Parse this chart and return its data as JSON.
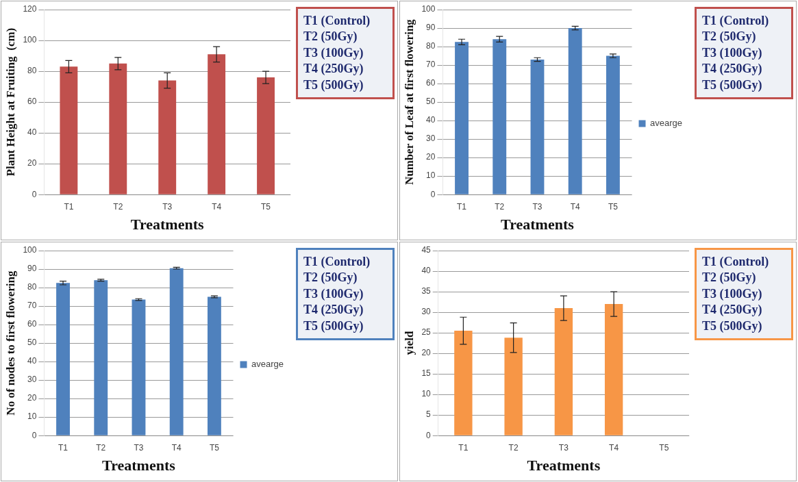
{
  "chart_data": [
    {
      "type": "bar",
      "categories": [
        "T1",
        "T2",
        "T3",
        "T4",
        "T5"
      ],
      "series": [
        {
          "color": "#c0504d",
          "values": [
            83,
            85,
            74,
            91,
            76
          ],
          "errors": [
            4,
            4,
            5,
            5,
            4
          ]
        }
      ],
      "xlabel": "Treatments",
      "ylabel": "Plant Height at Fruiting  (cm)",
      "ylim": [
        0,
        120
      ],
      "yticks": [
        0,
        20,
        40,
        60,
        80,
        100,
        120
      ],
      "grid": "y",
      "legend": false,
      "annotations": [
        "T1 (Control)",
        "T2 (50Gy)",
        "T3 (100Gy)",
        "T4 (250Gy)",
        "T5 (500Gy)"
      ]
    },
    {
      "type": "bar",
      "categories": [
        "T1",
        "T2",
        "T3",
        "T4",
        "T5"
      ],
      "series": [
        {
          "name": "avearge",
          "color": "#4f81bd",
          "values": [
            82.5,
            84,
            73,
            90,
            75
          ],
          "errors": [
            1.5,
            1.5,
            1,
            1,
            1
          ]
        }
      ],
      "xlabel": "Treatments",
      "ylabel": "Number of Leaf at first flowering",
      "ylim": [
        0,
        100
      ],
      "yticks": [
        0,
        10,
        20,
        30,
        40,
        50,
        60,
        70,
        80,
        90,
        100
      ],
      "grid": "y",
      "legend": "right",
      "annotations": [
        "T1 (Control)",
        "T2 (50Gy)",
        "T3 (100Gy)",
        "T4 (250Gy)",
        "T5 (500Gy)"
      ]
    },
    {
      "type": "bar",
      "categories": [
        "T1",
        "T2",
        "T3",
        "T4",
        "T5"
      ],
      "series": [
        {
          "name": "avearge",
          "color": "#4f81bd",
          "values": [
            82.5,
            84,
            73.5,
            90.5,
            75
          ],
          "errors": [
            1,
            0.5,
            0.5,
            0.5,
            0.5
          ]
        }
      ],
      "xlabel": "Treatments",
      "ylabel": "No of nodes to first flowering",
      "ylim": [
        0,
        100
      ],
      "yticks": [
        0,
        10,
        20,
        30,
        40,
        50,
        60,
        70,
        80,
        90,
        100
      ],
      "grid": "y",
      "legend": "right",
      "annotations": [
        "T1 (Control)",
        "T2 (50Gy)",
        "T3 (100Gy)",
        "T4 (250Gy)",
        "T5 (500Gy)"
      ]
    },
    {
      "type": "bar",
      "categories": [
        "T1",
        "T2",
        "T3",
        "T4",
        "T5"
      ],
      "series": [
        {
          "color": "#f79646",
          "values": [
            25.5,
            23.8,
            31,
            32,
            null
          ],
          "errors": [
            3.3,
            3.6,
            3,
            3,
            null
          ]
        }
      ],
      "xlabel": "Treatments",
      "ylabel": "yield",
      "ylim": [
        0,
        45
      ],
      "yticks": [
        0,
        5,
        10,
        15,
        20,
        25,
        30,
        35,
        40,
        45
      ],
      "grid": "y",
      "legend": false,
      "annotations": [
        "T1 (Control)",
        "T2 (50Gy)",
        "T3 (100Gy)",
        "T4 (250Gy)",
        "T5 (500Gy)"
      ]
    }
  ]
}
